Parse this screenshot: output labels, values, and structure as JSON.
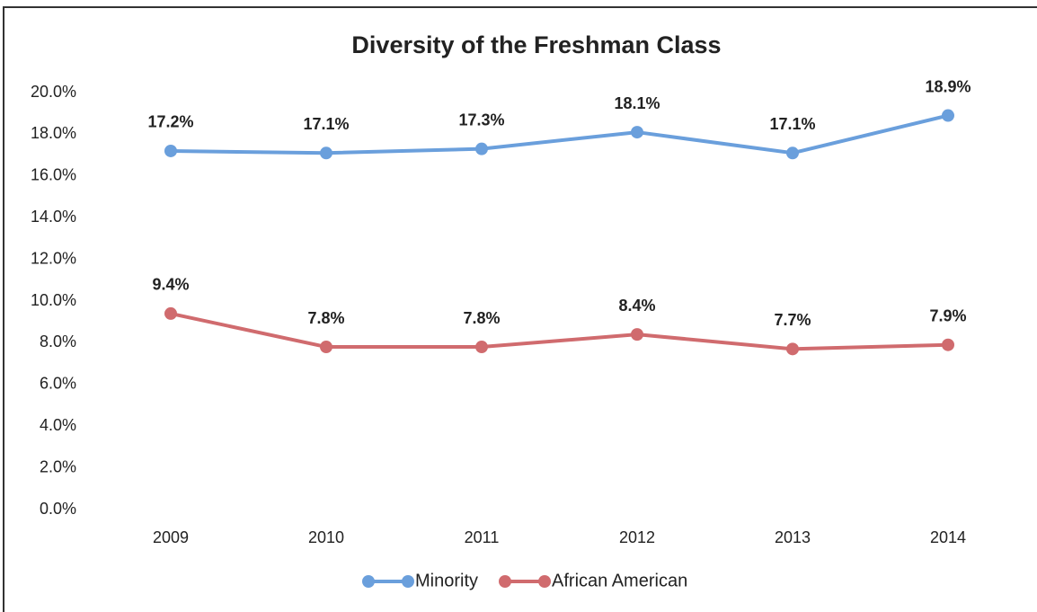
{
  "chart_data": {
    "type": "line",
    "title": "Diversity of the Freshman Class",
    "categories": [
      "2009",
      "2010",
      "2011",
      "2012",
      "2013",
      "2014"
    ],
    "series": [
      {
        "name": "Minority",
        "color": "#6a9fdc",
        "values": [
          17.2,
          17.1,
          17.3,
          18.1,
          17.1,
          18.9
        ],
        "value_labels": [
          "17.2%",
          "17.1%",
          "17.3%",
          "18.1%",
          "17.1%",
          "18.9%"
        ]
      },
      {
        "name": "African American",
        "color": "#d06b6e",
        "values": [
          9.4,
          7.8,
          7.8,
          8.4,
          7.7,
          7.9
        ],
        "value_labels": [
          "9.4%",
          "7.8%",
          "7.8%",
          "8.4%",
          "7.7%",
          "7.9%"
        ]
      }
    ],
    "ylim": [
      0,
      20
    ],
    "yticks": [
      {
        "value": 0,
        "label": "0.0%"
      },
      {
        "value": 2,
        "label": "2.0%"
      },
      {
        "value": 4,
        "label": "4.0%"
      },
      {
        "value": 6,
        "label": "6.0%"
      },
      {
        "value": 8,
        "label": "8.0%"
      },
      {
        "value": 10,
        "label": "10.0%"
      },
      {
        "value": 12,
        "label": "12.0%"
      },
      {
        "value": 14,
        "label": "14.0%"
      },
      {
        "value": 16,
        "label": "16.0%"
      },
      {
        "value": 18,
        "label": "18.0%"
      },
      {
        "value": 20,
        "label": "20.0%"
      }
    ],
    "grid": false,
    "legend": "bottom"
  }
}
